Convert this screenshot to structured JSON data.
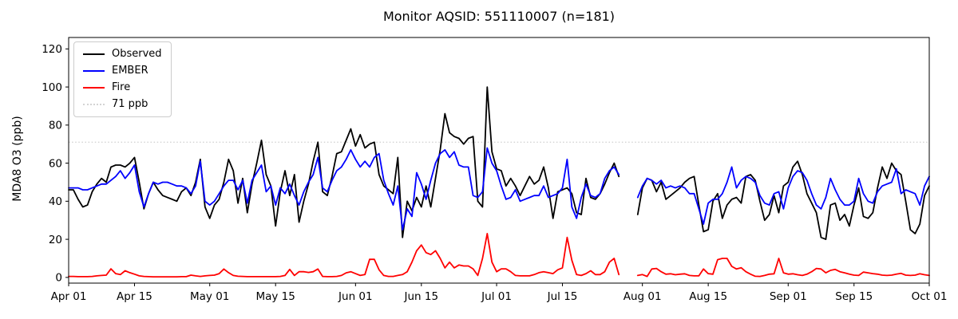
{
  "title": "Monitor AQSID: 551110007 (n=181)",
  "ylabel": "MDA8 O3 (ppb)",
  "legend": {
    "items": [
      {
        "label": "Observed",
        "color": "#000000",
        "style": "solid"
      },
      {
        "label": "EMBER",
        "color": "#0000ff",
        "style": "solid"
      },
      {
        "label": "Fire",
        "color": "#ff0000",
        "style": "solid"
      },
      {
        "label": "71 ppb",
        "color": "#d3d3d3",
        "style": "dotted"
      }
    ]
  },
  "chart_data": {
    "type": "line",
    "title": "Monitor AQSID: 551110007 (n=181)",
    "xlabel": "",
    "ylabel": "MDA8 O3 (ppb)",
    "x_unit": "days since Apr 01",
    "xlim_days": [
      0,
      183
    ],
    "ylim": [
      -3,
      126
    ],
    "grid": false,
    "legend_position": "upper left",
    "y_ticks": [
      0,
      20,
      40,
      60,
      80,
      100,
      120
    ],
    "x_tick_days": [
      0,
      14,
      30,
      44,
      61,
      75,
      91,
      105,
      122,
      136,
      153,
      167,
      183
    ],
    "x_tick_labels": [
      "Apr 01",
      "Apr 15",
      "May 01",
      "May 15",
      "Jun 01",
      "Jun 15",
      "Jul 01",
      "Jul 15",
      "Aug 01",
      "Aug 15",
      "Sep 01",
      "Sep 15",
      "Oct 01"
    ],
    "threshold": {
      "value": 71,
      "label": "71 ppb",
      "color": "#d3d3d3",
      "style": "dotted"
    },
    "series": [
      {
        "name": "Observed",
        "color": "#000000",
        "values": [
          46,
          46,
          41,
          37,
          38,
          45,
          49,
          52,
          50,
          58,
          59,
          59,
          58,
          60,
          63,
          50,
          36,
          44,
          50,
          46,
          43,
          42,
          41,
          40,
          45,
          47,
          43,
          50,
          62,
          37,
          31,
          38,
          41,
          50,
          62,
          56,
          39,
          52,
          34,
          49,
          60,
          72,
          54,
          48,
          27,
          45,
          56,
          43,
          54,
          29,
          40,
          49,
          61,
          71,
          45,
          43,
          53,
          65,
          66,
          72,
          78,
          69,
          75,
          68,
          70,
          71,
          54,
          48,
          46,
          44,
          63,
          21,
          40,
          35,
          42,
          37,
          48,
          37,
          52,
          67,
          86,
          76,
          74,
          73,
          70,
          73,
          74,
          40,
          37,
          100,
          66,
          57,
          56,
          48,
          52,
          48,
          43,
          48,
          53,
          49,
          51,
          58,
          47,
          31,
          45,
          46,
          47,
          44,
          34,
          33,
          52,
          42,
          41,
          44,
          49,
          55,
          60,
          53,
          null,
          null,
          null,
          33,
          47,
          52,
          51,
          45,
          50,
          41,
          43,
          45,
          47,
          50,
          52,
          53,
          38,
          24,
          25,
          40,
          44,
          31,
          38,
          41,
          42,
          39,
          53,
          54,
          51,
          40,
          30,
          33,
          43,
          34,
          48,
          50,
          58,
          61,
          54,
          44,
          39,
          34,
          21,
          20,
          38,
          39,
          30,
          33,
          27,
          38,
          47,
          32,
          31,
          34,
          47,
          58,
          52,
          60,
          56,
          54,
          40,
          25,
          23,
          28,
          43,
          48
        ]
      },
      {
        "name": "EMBER",
        "color": "#0000ff",
        "values": [
          47,
          47,
          47,
          46,
          46,
          47,
          48,
          49,
          49,
          51,
          53,
          56,
          52,
          55,
          59,
          45,
          37,
          44,
          50,
          49,
          50,
          50,
          49,
          48,
          48,
          47,
          44,
          48,
          61,
          40,
          38,
          40,
          44,
          48,
          51,
          51,
          46,
          51,
          39,
          51,
          55,
          59,
          45,
          48,
          38,
          47,
          44,
          49,
          43,
          38,
          45,
          50,
          54,
          63,
          47,
          45,
          51,
          56,
          58,
          62,
          67,
          62,
          58,
          61,
          58,
          63,
          65,
          51,
          44,
          38,
          48,
          25,
          36,
          32,
          55,
          49,
          41,
          51,
          60,
          65,
          67,
          63,
          66,
          59,
          58,
          58,
          43,
          42,
          45,
          68,
          60,
          56,
          48,
          41,
          42,
          46,
          40,
          41,
          42,
          43,
          43,
          48,
          42,
          43,
          44,
          47,
          62,
          37,
          31,
          42,
          49,
          43,
          42,
          44,
          52,
          56,
          58,
          54,
          null,
          null,
          null,
          42,
          48,
          52,
          51,
          49,
          51,
          47,
          48,
          47,
          48,
          47,
          44,
          44,
          36,
          28,
          39,
          41,
          41,
          44,
          50,
          58,
          47,
          51,
          53,
          52,
          50,
          43,
          39,
          38,
          44,
          45,
          36,
          47,
          53,
          56,
          55,
          51,
          44,
          38,
          36,
          42,
          52,
          46,
          41,
          38,
          38,
          40,
          52,
          44,
          40,
          39,
          45,
          48,
          49,
          50,
          57,
          44,
          46,
          45,
          44,
          38,
          48,
          53
        ]
      },
      {
        "name": "Fire",
        "color": "#ff0000",
        "values": [
          0.5,
          0.5,
          0.4,
          0.4,
          0.4,
          0.5,
          0.8,
          1,
          1.2,
          4.5,
          2,
          1.5,
          3.5,
          2.5,
          1.7,
          0.8,
          0.5,
          0.4,
          0.3,
          0.3,
          0.3,
          0.3,
          0.3,
          0.3,
          0.4,
          0.4,
          1.2,
          0.8,
          0.5,
          0.8,
          1,
          1.2,
          2,
          4.4,
          2.5,
          1,
          0.6,
          0.5,
          0.4,
          0.4,
          0.4,
          0.4,
          0.4,
          0.4,
          0.4,
          0.5,
          1,
          4.2,
          1,
          3,
          3,
          2.6,
          3,
          4.4,
          0.5,
          0.4,
          0.4,
          0.5,
          1,
          2.4,
          3,
          2,
          1,
          1.5,
          9.5,
          9.5,
          4,
          1,
          0.5,
          0.5,
          1,
          1.5,
          3,
          8,
          14,
          17,
          13,
          12,
          14,
          10,
          5,
          8,
          5,
          6.5,
          6,
          6,
          4.5,
          1,
          10,
          23,
          8,
          3,
          4.5,
          4.5,
          3,
          1,
          0.8,
          0.8,
          0.8,
          1.5,
          2.5,
          3,
          2.5,
          2,
          4,
          5,
          21,
          9,
          1.5,
          1,
          2,
          3.5,
          1.5,
          1.5,
          3,
          8,
          10,
          1.5,
          null,
          null,
          null,
          1,
          1.5,
          0.5,
          4.4,
          4.7,
          3,
          1.7,
          1.9,
          1.4,
          1.7,
          1.9,
          1,
          0.8,
          0.8,
          4.4,
          2,
          1.7,
          9.3,
          10,
          10,
          5.8,
          4.4,
          5.1,
          3,
          1.7,
          0.6,
          0.5,
          1,
          1.7,
          1.9,
          10,
          2.4,
          1.7,
          1.9,
          1.4,
          1,
          1.7,
          3,
          4.7,
          4.4,
          2.4,
          3.7,
          4.2,
          3,
          2.4,
          1.7,
          1.2,
          1,
          2.8,
          2.4,
          2,
          1.7,
          1.2,
          1,
          1.2,
          1.7,
          2.1,
          1.2,
          1,
          1.2,
          1.9,
          1.4,
          1
        ]
      }
    ]
  }
}
